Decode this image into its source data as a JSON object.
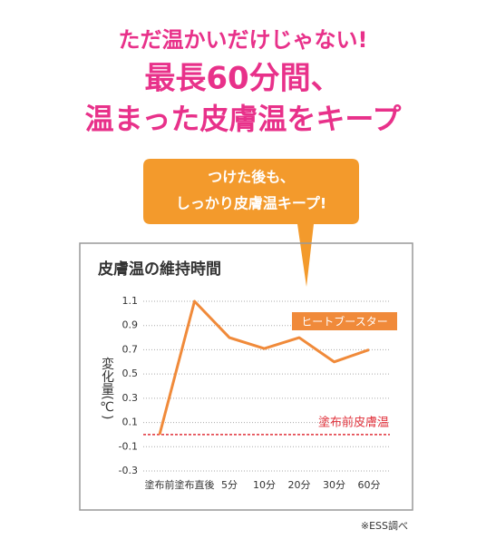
{
  "header": {
    "line1": "ただ温かいだけじゃない!",
    "line2": "最長60分間、",
    "line3": "温まった皮膚温をキープ"
  },
  "callout": {
    "line1": "つけた後も、",
    "line2": "しっかり皮膚温キープ!"
  },
  "chart_data": {
    "type": "line",
    "title": "皮膚温の維持時間",
    "y_label": "変化量(℃)",
    "categories": [
      "塗布前",
      "塗布直後",
      "5分",
      "10分",
      "20分",
      "30分",
      "60分"
    ],
    "series": [
      {
        "name": "ヒートブースター",
        "color": "#f08a3a",
        "values": [
          0,
          1.1,
          0.8,
          0.71,
          0.8,
          0.6,
          0.7
        ]
      }
    ],
    "ylim": [
      -0.3,
      1.1
    ],
    "yticks": [
      -0.3,
      -0.1,
      0.1,
      0.3,
      0.5,
      0.7,
      0.9,
      1.1
    ],
    "grid": true,
    "reference_line": {
      "value": 0,
      "label": "塗布前皮膚温",
      "color": "#e0303a"
    },
    "source": "※ESS調べ"
  }
}
